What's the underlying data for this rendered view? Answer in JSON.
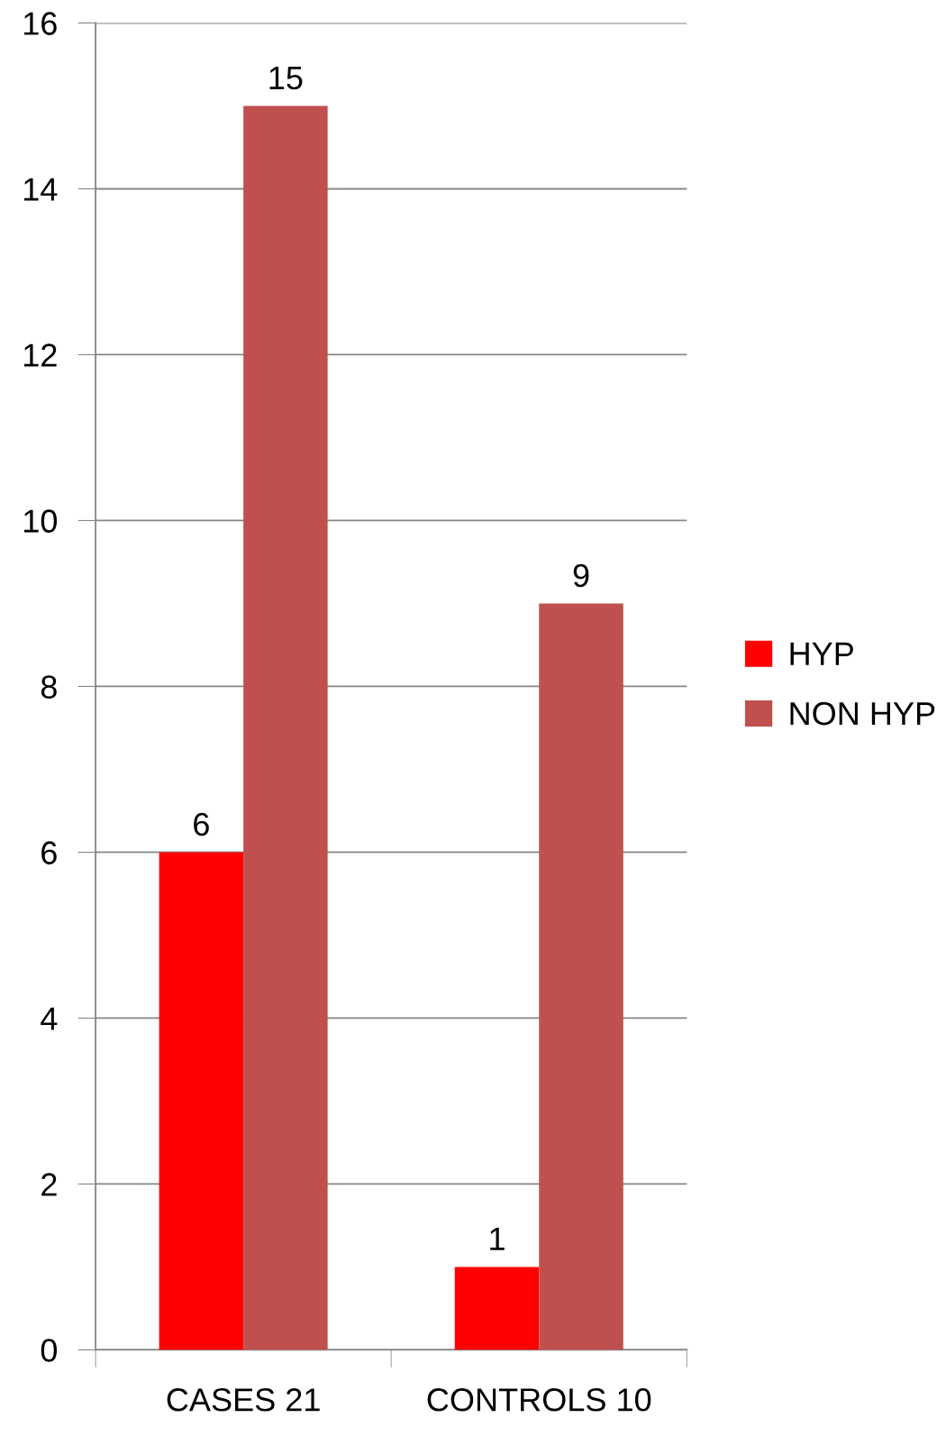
{
  "chart_data": {
    "type": "bar",
    "categories": [
      "CASES 21",
      "CONTROLS 10"
    ],
    "series": [
      {
        "name": "HYP",
        "color": "#ff0000",
        "values": [
          6,
          1
        ]
      },
      {
        "name": "NON HYP",
        "color": "#c0504d",
        "values": [
          15,
          9
        ]
      }
    ],
    "ylim": [
      0,
      16
    ],
    "yticks": [
      0,
      2,
      4,
      6,
      8,
      10,
      12,
      14,
      16
    ],
    "grid": "y",
    "legend": "right",
    "data_labels": true
  }
}
